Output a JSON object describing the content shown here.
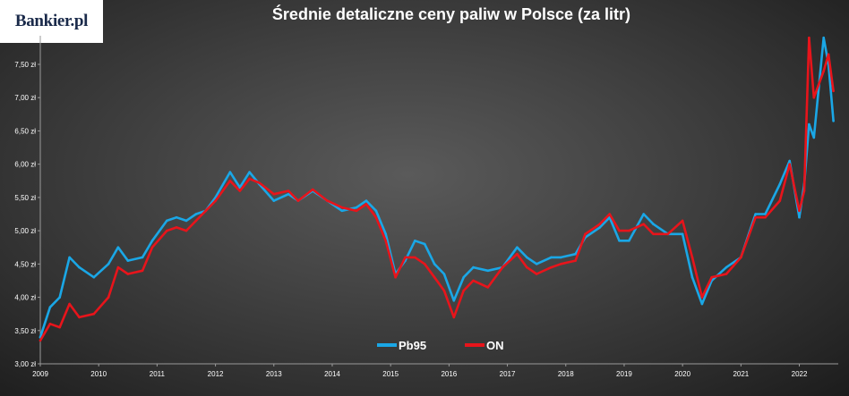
{
  "logo": {
    "text": "Bankier.pl"
  },
  "chart_data": {
    "type": "line",
    "title": "Średnie detaliczne ceny paliw w Polsce (za litr)",
    "xlabel": "",
    "ylabel": "",
    "ylim": [
      3.0,
      7.93
    ],
    "xlim": [
      "2009-01",
      "2022-09"
    ],
    "grid": false,
    "legend_position": "bottom-center",
    "y_ticks": [
      {
        "value": 3.0,
        "label": "3,00 zł"
      },
      {
        "value": 3.5,
        "label": "3,50 zł"
      },
      {
        "value": 4.0,
        "label": "4,00 zł"
      },
      {
        "value": 4.5,
        "label": "4,50 zł"
      },
      {
        "value": 5.0,
        "label": "5,00 zł"
      },
      {
        "value": 5.5,
        "label": "5,50 zł"
      },
      {
        "value": 6.0,
        "label": "6,00 zł"
      },
      {
        "value": 6.5,
        "label": "6,50 zł"
      },
      {
        "value": 7.0,
        "label": "7,00 zł"
      },
      {
        "value": 7.5,
        "label": "7,50 zł"
      }
    ],
    "x_ticks": [
      "2009",
      "2010",
      "2011",
      "2012",
      "2013",
      "2014",
      "2015",
      "2016",
      "2017",
      "2018",
      "2019",
      "2020",
      "2021",
      "2022"
    ],
    "series": [
      {
        "name": "Pb95",
        "color": "#1aa7e6",
        "points": [
          [
            "2009-01",
            3.4
          ],
          [
            "2009-03",
            3.85
          ],
          [
            "2009-05",
            4.0
          ],
          [
            "2009-07",
            4.6
          ],
          [
            "2009-09",
            4.45
          ],
          [
            "2009-12",
            4.3
          ],
          [
            "2010-03",
            4.5
          ],
          [
            "2010-05",
            4.75
          ],
          [
            "2010-07",
            4.55
          ],
          [
            "2010-10",
            4.6
          ],
          [
            "2010-12",
            4.85
          ],
          [
            "2011-03",
            5.15
          ],
          [
            "2011-05",
            5.2
          ],
          [
            "2011-07",
            5.15
          ],
          [
            "2011-09",
            5.25
          ],
          [
            "2011-11",
            5.3
          ],
          [
            "2012-01",
            5.5
          ],
          [
            "2012-04",
            5.88
          ],
          [
            "2012-06",
            5.65
          ],
          [
            "2012-08",
            5.88
          ],
          [
            "2012-10",
            5.7
          ],
          [
            "2013-01",
            5.45
          ],
          [
            "2013-04",
            5.55
          ],
          [
            "2013-06",
            5.45
          ],
          [
            "2013-09",
            5.6
          ],
          [
            "2013-12",
            5.45
          ],
          [
            "2014-03",
            5.3
          ],
          [
            "2014-06",
            5.35
          ],
          [
            "2014-08",
            5.45
          ],
          [
            "2014-10",
            5.3
          ],
          [
            "2014-12",
            4.95
          ],
          [
            "2015-02",
            4.35
          ],
          [
            "2015-04",
            4.55
          ],
          [
            "2015-06",
            4.85
          ],
          [
            "2015-08",
            4.8
          ],
          [
            "2015-10",
            4.5
          ],
          [
            "2015-12",
            4.35
          ],
          [
            "2016-02",
            3.95
          ],
          [
            "2016-04",
            4.3
          ],
          [
            "2016-06",
            4.45
          ],
          [
            "2016-09",
            4.4
          ],
          [
            "2016-12",
            4.45
          ],
          [
            "2017-03",
            4.75
          ],
          [
            "2017-05",
            4.6
          ],
          [
            "2017-07",
            4.5
          ],
          [
            "2017-10",
            4.6
          ],
          [
            "2017-12",
            4.6
          ],
          [
            "2018-03",
            4.65
          ],
          [
            "2018-05",
            4.9
          ],
          [
            "2018-08",
            5.05
          ],
          [
            "2018-10",
            5.2
          ],
          [
            "2018-12",
            4.85
          ],
          [
            "2019-02",
            4.85
          ],
          [
            "2019-05",
            5.25
          ],
          [
            "2019-07",
            5.1
          ],
          [
            "2019-10",
            4.95
          ],
          [
            "2020-01",
            4.95
          ],
          [
            "2020-03",
            4.3
          ],
          [
            "2020-05",
            3.9
          ],
          [
            "2020-07",
            4.25
          ],
          [
            "2020-10",
            4.45
          ],
          [
            "2021-01",
            4.6
          ],
          [
            "2021-04",
            5.25
          ],
          [
            "2021-06",
            5.25
          ],
          [
            "2021-09",
            5.7
          ],
          [
            "2021-11",
            6.05
          ],
          [
            "2022-01",
            5.2
          ],
          [
            "2022-02",
            5.7
          ],
          [
            "2022-03",
            6.6
          ],
          [
            "2022-04",
            6.4
          ],
          [
            "2022-06",
            7.9
          ],
          [
            "2022-07",
            7.5
          ],
          [
            "2022-08",
            6.65
          ]
        ]
      },
      {
        "name": "ON",
        "color": "#e8141b",
        "points": [
          [
            "2009-01",
            3.35
          ],
          [
            "2009-03",
            3.6
          ],
          [
            "2009-05",
            3.55
          ],
          [
            "2009-07",
            3.9
          ],
          [
            "2009-09",
            3.7
          ],
          [
            "2009-12",
            3.75
          ],
          [
            "2010-03",
            4.0
          ],
          [
            "2010-05",
            4.45
          ],
          [
            "2010-07",
            4.35
          ],
          [
            "2010-10",
            4.4
          ],
          [
            "2010-12",
            4.75
          ],
          [
            "2011-03",
            5.0
          ],
          [
            "2011-05",
            5.05
          ],
          [
            "2011-07",
            5.0
          ],
          [
            "2011-09",
            5.15
          ],
          [
            "2011-11",
            5.3
          ],
          [
            "2012-01",
            5.45
          ],
          [
            "2012-04",
            5.75
          ],
          [
            "2012-06",
            5.6
          ],
          [
            "2012-08",
            5.78
          ],
          [
            "2012-10",
            5.72
          ],
          [
            "2013-01",
            5.55
          ],
          [
            "2013-04",
            5.6
          ],
          [
            "2013-06",
            5.45
          ],
          [
            "2013-09",
            5.62
          ],
          [
            "2013-12",
            5.45
          ],
          [
            "2014-03",
            5.35
          ],
          [
            "2014-06",
            5.3
          ],
          [
            "2014-08",
            5.4
          ],
          [
            "2014-10",
            5.2
          ],
          [
            "2014-12",
            4.85
          ],
          [
            "2015-02",
            4.3
          ],
          [
            "2015-04",
            4.6
          ],
          [
            "2015-06",
            4.6
          ],
          [
            "2015-08",
            4.5
          ],
          [
            "2015-10",
            4.3
          ],
          [
            "2015-12",
            4.1
          ],
          [
            "2016-02",
            3.7
          ],
          [
            "2016-04",
            4.1
          ],
          [
            "2016-06",
            4.25
          ],
          [
            "2016-09",
            4.15
          ],
          [
            "2016-12",
            4.45
          ],
          [
            "2017-03",
            4.65
          ],
          [
            "2017-05",
            4.45
          ],
          [
            "2017-07",
            4.35
          ],
          [
            "2017-10",
            4.45
          ],
          [
            "2017-12",
            4.5
          ],
          [
            "2018-03",
            4.55
          ],
          [
            "2018-05",
            4.95
          ],
          [
            "2018-08",
            5.1
          ],
          [
            "2018-10",
            5.25
          ],
          [
            "2018-12",
            5.0
          ],
          [
            "2019-02",
            5.0
          ],
          [
            "2019-05",
            5.1
          ],
          [
            "2019-07",
            4.95
          ],
          [
            "2019-10",
            4.95
          ],
          [
            "2020-01",
            5.15
          ],
          [
            "2020-03",
            4.6
          ],
          [
            "2020-05",
            4.0
          ],
          [
            "2020-07",
            4.3
          ],
          [
            "2020-10",
            4.35
          ],
          [
            "2021-01",
            4.6
          ],
          [
            "2021-04",
            5.2
          ],
          [
            "2021-06",
            5.2
          ],
          [
            "2021-09",
            5.45
          ],
          [
            "2021-11",
            6.0
          ],
          [
            "2022-01",
            5.3
          ],
          [
            "2022-02",
            5.6
          ],
          [
            "2022-03",
            7.9
          ],
          [
            "2022-04",
            7.0
          ],
          [
            "2022-06",
            7.4
          ],
          [
            "2022-07",
            7.65
          ],
          [
            "2022-08",
            7.1
          ]
        ]
      }
    ]
  }
}
